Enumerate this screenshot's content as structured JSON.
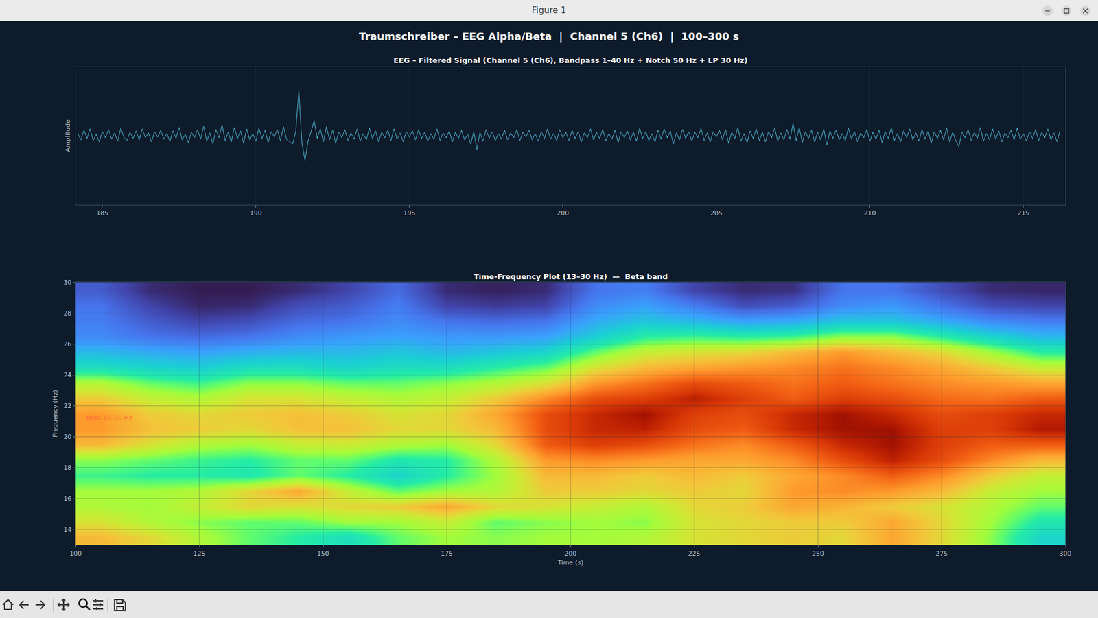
{
  "window_title": "Figure 1",
  "figure_title": "Traumschreiber – EEG Alpha/Beta  |  Channel 5 (Ch6)  |  100–300 s",
  "chart_data": [
    {
      "type": "line",
      "title": "EEG – Filtered Signal (Channel 5 (Ch6), Bandpass 1–40 Hz + Notch 50 Hz + LP 30 Hz)",
      "y_label": "Amplitude",
      "color": "#4fb3cf",
      "grid": true,
      "tick_labels": "x",
      "xlim": [
        184.13,
        216.37
      ],
      "xticks": [
        185,
        190,
        195,
        200,
        205,
        210,
        215
      ],
      "ylim": [
        -100,
        100
      ],
      "x": [
        184.2,
        184.3,
        184.4,
        184.5,
        184.6,
        184.7,
        184.8,
        184.9,
        185.0,
        185.1,
        185.2,
        185.3,
        185.4,
        185.5,
        185.6,
        185.7,
        185.8,
        185.9,
        186.0,
        186.1,
        186.2,
        186.3,
        186.4,
        186.5,
        186.6,
        186.7,
        186.8,
        186.9,
        187.0,
        187.1,
        187.2,
        187.3,
        187.4,
        187.5,
        187.6,
        187.7,
        187.8,
        187.9,
        188.0,
        188.1,
        188.2,
        188.3,
        188.4,
        188.5,
        188.6,
        188.7,
        188.8,
        188.9,
        189.0,
        189.1,
        189.2,
        189.3,
        189.4,
        189.5,
        189.6,
        189.7,
        189.8,
        189.9,
        190.0,
        190.1,
        190.2,
        190.3,
        190.4,
        190.5,
        190.6,
        190.7,
        190.8,
        190.9,
        191.0,
        191.1,
        191.2,
        191.3,
        191.4,
        191.5,
        191.6,
        191.7,
        191.8,
        191.9,
        192.0,
        192.1,
        192.2,
        192.3,
        192.4,
        192.5,
        192.6,
        192.7,
        192.8,
        192.9,
        193.0,
        193.1,
        193.2,
        193.3,
        193.4,
        193.5,
        193.6,
        193.7,
        193.8,
        193.9,
        194.0,
        194.1,
        194.2,
        194.3,
        194.4,
        194.5,
        194.6,
        194.7,
        194.8,
        194.9,
        195.0,
        195.1,
        195.2,
        195.3,
        195.4,
        195.5,
        195.6,
        195.7,
        195.8,
        195.9,
        196.0,
        196.1,
        196.2,
        196.3,
        196.4,
        196.5,
        196.6,
        196.7,
        196.8,
        196.9,
        197.0,
        197.1,
        197.2,
        197.3,
        197.4,
        197.5,
        197.6,
        197.7,
        197.8,
        197.9,
        198.0,
        198.1,
        198.2,
        198.3,
        198.4,
        198.5,
        198.6,
        198.7,
        198.8,
        198.9,
        199.0,
        199.1,
        199.2,
        199.3,
        199.4,
        199.5,
        199.6,
        199.7,
        199.8,
        199.9,
        200.0,
        200.1,
        200.2,
        200.3,
        200.4,
        200.5,
        200.6,
        200.7,
        200.8,
        200.9,
        201.0,
        201.1,
        201.2,
        201.3,
        201.4,
        201.5,
        201.6,
        201.7,
        201.8,
        201.9,
        202.0,
        202.1,
        202.2,
        202.3,
        202.4,
        202.5,
        202.6,
        202.7,
        202.8,
        202.9,
        203.0,
        203.1,
        203.2,
        203.3,
        203.4,
        203.5,
        203.6,
        203.7,
        203.8,
        203.9,
        204.0,
        204.1,
        204.2,
        204.3,
        204.4,
        204.5,
        204.6,
        204.7,
        204.8,
        204.9,
        205.0,
        205.1,
        205.2,
        205.3,
        205.4,
        205.5,
        205.6,
        205.7,
        205.8,
        205.9,
        206.0,
        206.1,
        206.2,
        206.3,
        206.4,
        206.5,
        206.6,
        206.7,
        206.8,
        206.9,
        207.0,
        207.1,
        207.2,
        207.3,
        207.4,
        207.5,
        207.6,
        207.7,
        207.8,
        207.9,
        208.0,
        208.1,
        208.2,
        208.3,
        208.4,
        208.5,
        208.6,
        208.7,
        208.8,
        208.9,
        209.0,
        209.1,
        209.2,
        209.3,
        209.4,
        209.5,
        209.6,
        209.7,
        209.8,
        209.9,
        210.0,
        210.1,
        210.2,
        210.3,
        210.4,
        210.5,
        210.6,
        210.7,
        210.8,
        210.9,
        211.0,
        211.1,
        211.2,
        211.3,
        211.4,
        211.5,
        211.6,
        211.7,
        211.8,
        211.9,
        212.0,
        212.1,
        212.2,
        212.3,
        212.4,
        212.5,
        212.6,
        212.7,
        212.8,
        212.9,
        213.0,
        213.1,
        213.2,
        213.3,
        213.4,
        213.5,
        213.6,
        213.7,
        213.8,
        213.9,
        214.0,
        214.1,
        214.2,
        214.3,
        214.4,
        214.5,
        214.6,
        214.7,
        214.8,
        214.9,
        215.0,
        215.1,
        215.2,
        215.3,
        215.4,
        215.5,
        215.6,
        215.7,
        215.8,
        215.9,
        216.0,
        216.1,
        216.2
      ],
      "values": [
        3,
        -6,
        8,
        -4,
        10,
        -7,
        2,
        -9,
        6,
        -3,
        9,
        -5,
        4,
        -8,
        11,
        -2,
        -7,
        5,
        -4,
        7,
        -6,
        10,
        -3,
        4,
        -9,
        6,
        -2,
        8,
        -5,
        3,
        -8,
        7,
        -4,
        12,
        -6,
        2,
        -10,
        5,
        -3,
        9,
        -5,
        14,
        -8,
        4,
        -12,
        9,
        -3,
        16,
        -7,
        5,
        -9,
        12,
        -4,
        7,
        -11,
        10,
        -6,
        3,
        -8,
        11,
        -4,
        8,
        -10,
        6,
        -2,
        9,
        -7,
        13,
        -5,
        -9,
        -12,
        6,
        66,
        -10,
        -36,
        -8,
        6,
        22,
        -4,
        10,
        -9,
        13,
        -6,
        8,
        -11,
        5,
        -3,
        9,
        -7,
        4,
        -5,
        10,
        -8,
        3,
        -6,
        11,
        -4,
        7,
        -9,
        5,
        -3,
        8,
        -7,
        10,
        -5,
        4,
        -9,
        6,
        -2,
        7,
        -6,
        9,
        -4,
        5,
        -8,
        3,
        -5,
        10,
        -7,
        4,
        -3,
        7,
        -9,
        5,
        -4,
        8,
        -6,
        2,
        -12,
        6,
        -20,
        5,
        -8,
        9,
        -4,
        6,
        -7,
        3,
        -5,
        8,
        -6,
        4,
        -3,
        9,
        -7,
        5,
        -2,
        8,
        -6,
        3,
        -8,
        6,
        -4,
        10,
        -5,
        3,
        -7,
        9,
        -3,
        5,
        -7,
        8,
        -4,
        6,
        -9,
        4,
        -3,
        10,
        -6,
        5,
        -4,
        9,
        -7,
        3,
        -5,
        8,
        -10,
        6,
        -3,
        7,
        -6,
        5,
        -8,
        11,
        -4,
        6,
        -7,
        3,
        -9,
        8,
        -5,
        10,
        -3,
        7,
        -12,
        4,
        -6,
        9,
        -4,
        6,
        -8,
        5,
        -3,
        11,
        -7,
        4,
        -9,
        6,
        -2,
        8,
        -6,
        9,
        -11,
        5,
        -4,
        12,
        -8,
        3,
        -10,
        7,
        -4,
        10,
        -7,
        5,
        -9,
        6,
        -3,
        11,
        -8,
        4,
        -6,
        9,
        -5,
        18,
        -7,
        12,
        -10,
        6,
        -4,
        8,
        -9,
        5,
        -6,
        10,
        -14,
        7,
        -4,
        8,
        -6,
        3,
        -7,
        11,
        -5,
        6,
        -9,
        4,
        -3,
        9,
        -8,
        5,
        -5,
        8,
        -10,
        6,
        -4,
        12,
        -7,
        3,
        -9,
        7,
        -3,
        10,
        -6,
        4,
        -8,
        9,
        -5,
        7,
        -11,
        6,
        -4,
        8,
        -6,
        11,
        -9,
        5,
        -7,
        -16,
        6,
        -3,
        9,
        -7,
        5,
        -4,
        12,
        -8,
        3,
        -6,
        10,
        -5,
        7,
        -9,
        4,
        -3,
        8,
        -6,
        11,
        -5,
        3,
        -8,
        6,
        -4,
        9,
        -7,
        5,
        -3,
        10,
        -6,
        4,
        -9,
        8
      ]
    },
    {
      "type": "heatmap",
      "title": "Time-Frequency Plot (13–30 Hz)  —  Beta band",
      "x_label": "Time (s)",
      "y_label": "Frequency (Hz)",
      "grid": true,
      "xlim": [
        100,
        300
      ],
      "xticks": [
        100,
        125,
        150,
        175,
        200,
        225,
        250,
        275,
        300
      ],
      "ylim": [
        13,
        30
      ],
      "yticks": [
        14,
        16,
        18,
        20,
        22,
        24,
        26,
        28,
        30
      ],
      "zlim": [
        0,
        1
      ],
      "annotations": [
        {
          "text": "Beta 13–30 Hz",
          "x": 102,
          "y": 21.2
        }
      ],
      "x": [
        105,
        115,
        125,
        135,
        145,
        155,
        165,
        175,
        185,
        195,
        205,
        215,
        225,
        235,
        245,
        255,
        265,
        275,
        285,
        295
      ],
      "y": [
        13.5,
        14.5,
        15.5,
        16.5,
        17.5,
        18.5,
        19.5,
        20.5,
        21.5,
        22.5,
        23.5,
        24.5,
        25.5,
        26.5,
        27.5,
        28.5,
        29.5
      ],
      "cells": [
        [
          0.75,
          0.7,
          0.62,
          0.55,
          0.5,
          0.45,
          0.55,
          0.6,
          0.58,
          0.6,
          0.6,
          0.62,
          0.68,
          0.7,
          0.72,
          0.7,
          0.78,
          0.7,
          0.58,
          0.42
        ],
        [
          0.68,
          0.62,
          0.58,
          0.55,
          0.55,
          0.6,
          0.6,
          0.65,
          0.55,
          0.58,
          0.6,
          0.58,
          0.68,
          0.7,
          0.72,
          0.72,
          0.78,
          0.7,
          0.6,
          0.48
        ],
        [
          0.62,
          0.6,
          0.65,
          0.7,
          0.68,
          0.7,
          0.72,
          0.78,
          0.7,
          0.68,
          0.65,
          0.62,
          0.7,
          0.72,
          0.78,
          0.76,
          0.72,
          0.68,
          0.62,
          0.55
        ],
        [
          0.6,
          0.6,
          0.62,
          0.7,
          0.78,
          0.65,
          0.55,
          0.6,
          0.62,
          0.72,
          0.72,
          0.7,
          0.72,
          0.7,
          0.8,
          0.82,
          0.8,
          0.75,
          0.65,
          0.6
        ],
        [
          0.52,
          0.5,
          0.5,
          0.48,
          0.55,
          0.5,
          0.42,
          0.5,
          0.6,
          0.75,
          0.75,
          0.72,
          0.75,
          0.72,
          0.78,
          0.82,
          0.88,
          0.82,
          0.72,
          0.65
        ],
        [
          0.58,
          0.55,
          0.52,
          0.5,
          0.55,
          0.55,
          0.48,
          0.5,
          0.62,
          0.8,
          0.82,
          0.8,
          0.78,
          0.78,
          0.82,
          0.9,
          0.96,
          0.9,
          0.82,
          0.75
        ],
        [
          0.75,
          0.68,
          0.62,
          0.6,
          0.65,
          0.66,
          0.62,
          0.6,
          0.7,
          0.88,
          0.92,
          0.9,
          0.85,
          0.82,
          0.88,
          0.95,
          0.98,
          0.92,
          0.88,
          0.88
        ],
        [
          0.8,
          0.74,
          0.72,
          0.7,
          0.74,
          0.74,
          0.7,
          0.7,
          0.75,
          0.9,
          0.95,
          0.96,
          0.9,
          0.88,
          0.95,
          0.98,
          0.98,
          0.92,
          0.92,
          0.97
        ],
        [
          0.8,
          0.72,
          0.7,
          0.72,
          0.74,
          0.72,
          0.68,
          0.7,
          0.78,
          0.9,
          0.95,
          0.98,
          0.92,
          0.9,
          0.95,
          0.98,
          0.95,
          0.9,
          0.92,
          0.95
        ],
        [
          0.72,
          0.65,
          0.62,
          0.68,
          0.68,
          0.65,
          0.62,
          0.65,
          0.72,
          0.82,
          0.9,
          0.92,
          0.96,
          0.92,
          0.88,
          0.92,
          0.9,
          0.86,
          0.85,
          0.88
        ],
        [
          0.62,
          0.55,
          0.52,
          0.58,
          0.58,
          0.55,
          0.55,
          0.58,
          0.62,
          0.68,
          0.8,
          0.85,
          0.9,
          0.88,
          0.85,
          0.88,
          0.85,
          0.82,
          0.8,
          0.78
        ],
        [
          0.45,
          0.42,
          0.4,
          0.45,
          0.45,
          0.42,
          0.45,
          0.45,
          0.5,
          0.55,
          0.68,
          0.75,
          0.78,
          0.8,
          0.82,
          0.85,
          0.82,
          0.78,
          0.72,
          0.65
        ],
        [
          0.35,
          0.32,
          0.3,
          0.33,
          0.35,
          0.35,
          0.38,
          0.35,
          0.38,
          0.42,
          0.55,
          0.65,
          0.68,
          0.7,
          0.75,
          0.8,
          0.75,
          0.7,
          0.6,
          0.5
        ],
        [
          0.25,
          0.2,
          0.18,
          0.2,
          0.25,
          0.28,
          0.3,
          0.28,
          0.28,
          0.3,
          0.4,
          0.5,
          0.52,
          0.5,
          0.52,
          0.58,
          0.58,
          0.5,
          0.42,
          0.35
        ],
        [
          0.22,
          0.15,
          0.1,
          0.12,
          0.18,
          0.2,
          0.25,
          0.2,
          0.18,
          0.2,
          0.32,
          0.38,
          0.35,
          0.3,
          0.32,
          0.38,
          0.38,
          0.32,
          0.25,
          0.22
        ],
        [
          0.2,
          0.1,
          0.04,
          0.05,
          0.12,
          0.15,
          0.22,
          0.1,
          0.08,
          0.1,
          0.25,
          0.3,
          0.22,
          0.12,
          0.15,
          0.25,
          0.28,
          0.2,
          0.12,
          0.1
        ],
        [
          0.15,
          0.05,
          0.02,
          0.02,
          0.05,
          0.1,
          0.18,
          0.05,
          0.03,
          0.05,
          0.2,
          0.22,
          0.1,
          0.05,
          0.06,
          0.2,
          0.2,
          0.12,
          0.05,
          0.04
        ]
      ]
    }
  ]
}
